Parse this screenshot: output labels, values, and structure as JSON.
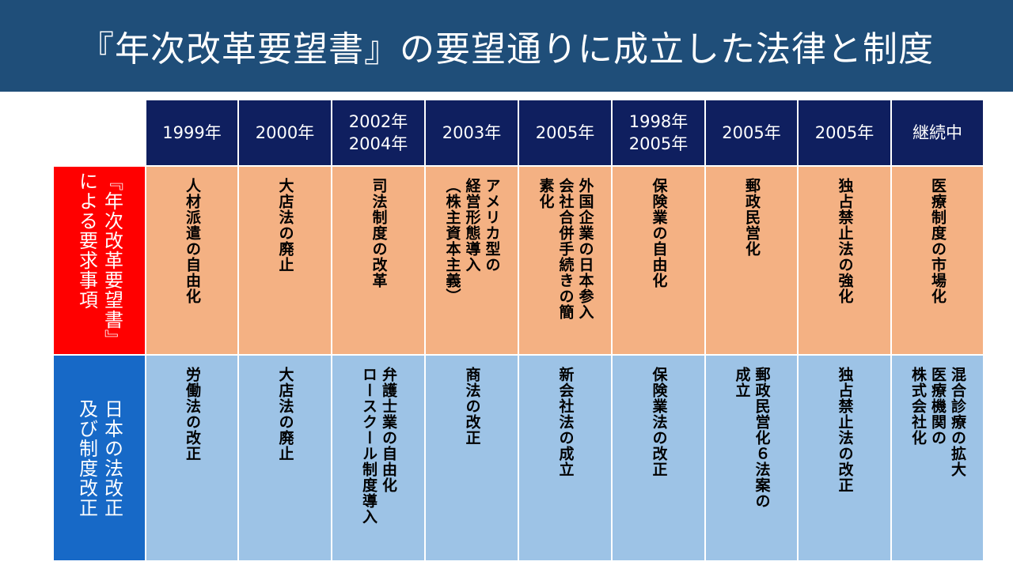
{
  "title": "『年次改革要望書』の要望通りに成立した法律と制度",
  "row_headers": {
    "requests": "『年次改革要望書』\nによる要求事項",
    "laws": "日本の法改正\n及び制度改正"
  },
  "columns": [
    {
      "year": "1999年",
      "request": "人材派遣の自由化",
      "law": "労働法の改正"
    },
    {
      "year": "2000年",
      "request": "大店法の廃止",
      "law": "大店法の廃止"
    },
    {
      "year": "2002年\n2004年",
      "request": "司法制度の改革",
      "law": "弁護士業の自由化\nロースクール制度導入"
    },
    {
      "year": "2003年",
      "request": "アメリカ型の\n経営形態導入\n（株主資本主義）",
      "law": "商法の改正"
    },
    {
      "year": "2005年",
      "request": "外国企業の日本参入\n会社合併手続きの簡\n素化",
      "law": "新会社法の成立"
    },
    {
      "year": "1998年\n2005年",
      "request": "保険業の自由化",
      "law": "保険業法の改正"
    },
    {
      "year": "2005年",
      "request": "郵政民営化",
      "law": "郵政民営化６法案の\n成立"
    },
    {
      "year": "2005年",
      "request": "独占禁止法の強化",
      "law": "独占禁止法の改正"
    },
    {
      "year": "継続中",
      "request": "医療制度の市場化",
      "law": "混合診療の拡大\n医療機関の\n株式会社化"
    }
  ]
}
